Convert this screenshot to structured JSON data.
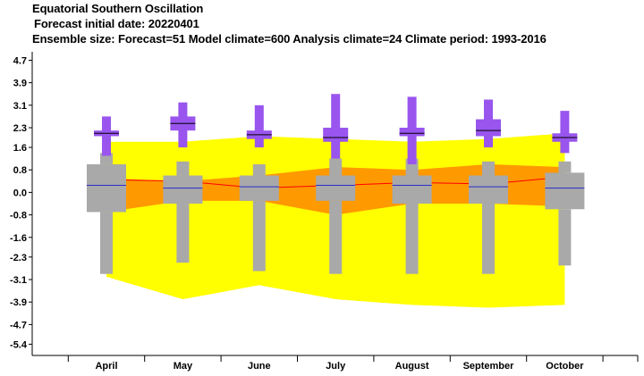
{
  "chart_data": {
    "type": "box",
    "title": "Equatorial Southern Oscillation",
    "subtitle": "Forecast initial date: 20220401",
    "info": "Ensemble size: Forecast=51 Model climate=600 Analysis climate=24   Climate period: 1993-2016",
    "categories": [
      "April",
      "May",
      "June",
      "July",
      "August",
      "September",
      "October"
    ],
    "y_ticks": [
      "4.7",
      "3.9",
      "3.1",
      "2.3",
      "1.6",
      "0.8",
      "0.0",
      "-0.8",
      "-1.6",
      "-2.3",
      "-3.1",
      "-3.9",
      "-4.7",
      "-5.4"
    ],
    "ylim": [
      -5.8,
      5.0
    ],
    "analysis_climate": {
      "outer": {
        "low": [
          -3.0,
          -3.8,
          -3.3,
          -3.8,
          -4.0,
          -4.1,
          -4.0
        ],
        "high": [
          1.8,
          1.8,
          2.0,
          1.9,
          1.8,
          1.9,
          2.1
        ]
      },
      "inner": {
        "low": [
          -0.7,
          -0.3,
          -0.3,
          -0.8,
          -0.4,
          -0.4,
          -0.5
        ],
        "high": [
          0.5,
          0.4,
          0.6,
          0.9,
          0.8,
          1.0,
          0.9
        ]
      },
      "median": [
        0.45,
        0.4,
        0.15,
        0.25,
        0.35,
        0.3,
        0.55
      ]
    },
    "model_climate": {
      "whisker_low": [
        -2.9,
        -2.5,
        -2.8,
        -2.9,
        -2.9,
        -2.9,
        -2.6
      ],
      "box_low": [
        -0.7,
        -0.4,
        -0.3,
        -0.3,
        -0.4,
        -0.4,
        -0.6
      ],
      "median": [
        0.25,
        0.15,
        0.2,
        0.25,
        0.25,
        0.2,
        0.15
      ],
      "box_high": [
        1.0,
        0.6,
        0.6,
        0.6,
        0.6,
        0.6,
        0.7
      ],
      "whisker_high": [
        1.4,
        1.1,
        1.0,
        1.2,
        1.2,
        1.1,
        1.1
      ]
    },
    "forecast": {
      "min": [
        1.3,
        1.6,
        1.6,
        1.2,
        1.0,
        1.6,
        1.4
      ],
      "p10": [
        2.0,
        2.2,
        1.9,
        1.8,
        2.0,
        2.0,
        1.8
      ],
      "p25": [
        2.0,
        2.2,
        1.9,
        1.8,
        2.0,
        2.0,
        1.8
      ],
      "median": [
        2.1,
        2.45,
        2.05,
        1.95,
        2.1,
        2.2,
        1.95
      ],
      "p75": [
        2.2,
        2.7,
        2.2,
        2.3,
        2.3,
        2.6,
        2.1
      ],
      "p90": [
        2.2,
        2.7,
        2.2,
        2.3,
        2.3,
        2.6,
        2.1
      ],
      "max": [
        2.7,
        3.2,
        3.1,
        3.5,
        3.4,
        3.3,
        2.9
      ]
    },
    "colors": {
      "outer_band": "#ffff00",
      "inner_band": "#ff9900",
      "median_line": "#ff0000",
      "model_box": "#a9a9a9",
      "forecast_box": "#9955ee",
      "model_median": "#2b2bcc",
      "forecast_median": "#000000"
    },
    "grid": false
  }
}
